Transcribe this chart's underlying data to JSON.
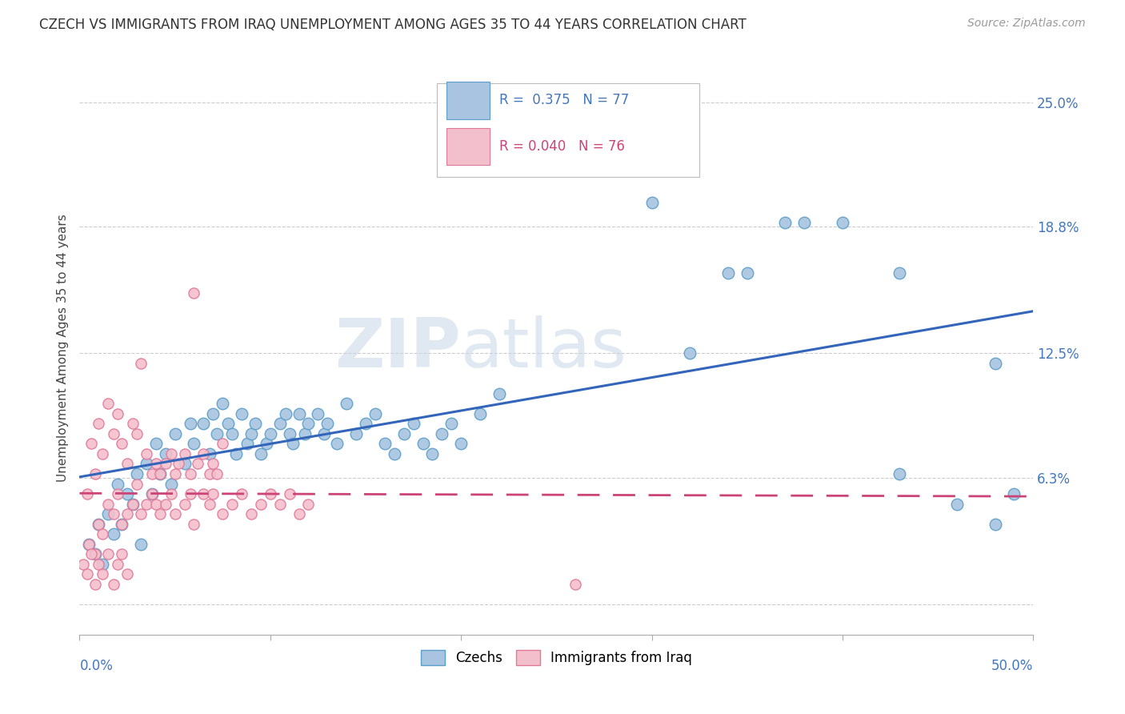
{
  "title": "CZECH VS IMMIGRANTS FROM IRAQ UNEMPLOYMENT AMONG AGES 35 TO 44 YEARS CORRELATION CHART",
  "source": "Source: ZipAtlas.com",
  "ylabel": "Unemployment Among Ages 35 to 44 years",
  "ytick_vals": [
    0.0,
    0.063,
    0.125,
    0.188,
    0.25
  ],
  "ytick_labels": [
    "",
    "6.3%",
    "12.5%",
    "18.8%",
    "25.0%"
  ],
  "xmin": 0.0,
  "xmax": 0.5,
  "ymin": -0.015,
  "ymax": 0.27,
  "blue_color": "#a8c4e0",
  "blue_edge": "#5b9ec9",
  "pink_color": "#f4bfcc",
  "pink_edge": "#e07898",
  "blue_line_color": "#3366bb",
  "pink_line_color": "#cc4477",
  "watermark1": "ZIP",
  "watermark2": "atlas",
  "bg_color": "#ffffff",
  "grid_color": "#cccccc",
  "axis_label_color": "#4477bb",
  "title_color": "#333333",
  "source_color": "#999999"
}
